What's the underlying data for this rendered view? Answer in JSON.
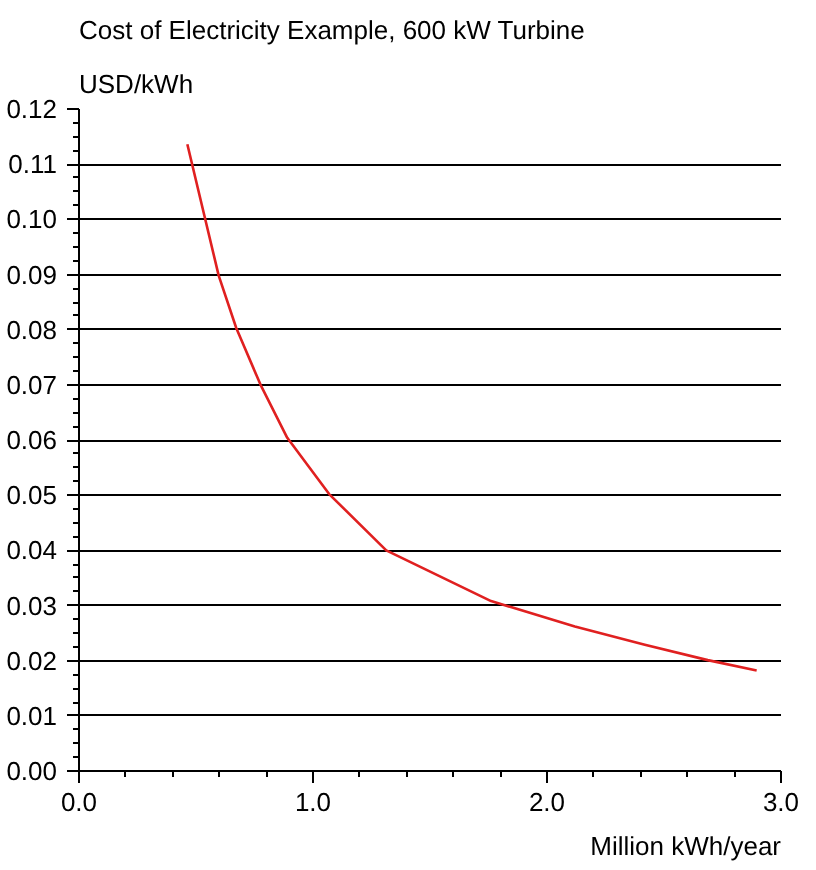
{
  "chart_data": {
    "type": "line",
    "title": "Cost of Electricity Example, 600 kW Turbine",
    "ylabel": "USD/kWh",
    "xlabel": "Million kWh/year",
    "x": [
      0.463,
      0.597,
      0.672,
      0.776,
      0.89,
      1.069,
      1.313,
      1.761,
      2.119,
      2.418,
      2.687,
      2.896
    ],
    "series": [
      {
        "color": "#e02020",
        "values": [
          0.1136,
          0.0898,
          0.0803,
          0.07,
          0.0604,
          0.0502,
          0.04,
          0.0308,
          0.0262,
          0.0229,
          0.0201,
          0.0182
        ]
      }
    ],
    "xlim": [
      0,
      3
    ],
    "ylim": [
      0,
      0.12
    ],
    "xticks": [
      {
        "value": 0,
        "label": "0.0"
      },
      {
        "value": 1,
        "label": "1.0"
      },
      {
        "value": 2,
        "label": "2.0"
      },
      {
        "value": 3,
        "label": "3.0"
      }
    ],
    "yticks": [
      {
        "value": 0,
        "label": "0.00"
      },
      {
        "value": 0.01,
        "label": "0.01"
      },
      {
        "value": 0.02,
        "label": "0.02"
      },
      {
        "value": 0.03,
        "label": "0.03"
      },
      {
        "value": 0.04,
        "label": "0.04"
      },
      {
        "value": 0.05,
        "label": "0.05"
      },
      {
        "value": 0.06,
        "label": "0.06"
      },
      {
        "value": 0.07,
        "label": "0.07"
      },
      {
        "value": 0.08,
        "label": "0.08"
      },
      {
        "value": 0.09,
        "label": "0.09"
      },
      {
        "value": 0.1,
        "label": "0.10"
      },
      {
        "value": 0.11,
        "label": "0.11"
      },
      {
        "value": 0.12,
        "label": "0.12"
      }
    ],
    "grid": "y",
    "marker": "none",
    "line_style": "solid"
  }
}
